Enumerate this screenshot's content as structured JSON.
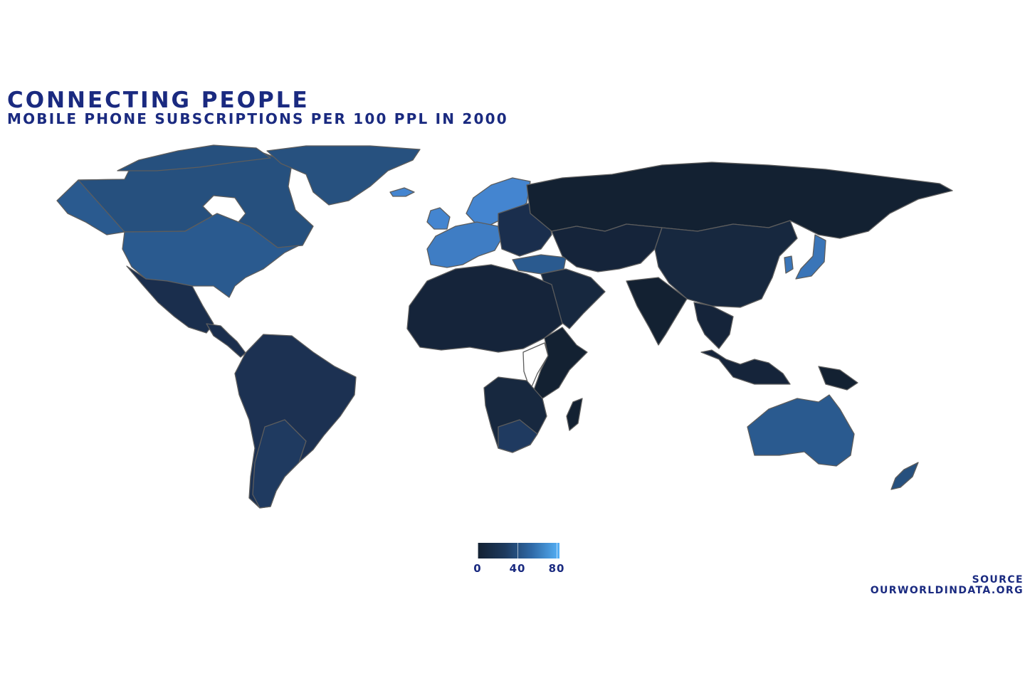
{
  "title": "CONNECTING PEOPLE",
  "subtitle": "MOBILE PHONE SUBSCRIPTIONS PER 100 PPL IN 2000",
  "chart_data": {
    "type": "choropleth",
    "metric": "Mobile phone subscriptions per 100 people",
    "year": 2000,
    "color_scale": {
      "low": "#132132",
      "high": "#56b1f7",
      "domain": [
        0,
        85
      ]
    },
    "legend": {
      "position": "bottom-center",
      "ticks": [
        0,
        40,
        80
      ]
    },
    "approx_values": {
      "Russia": 2,
      "China": 7,
      "India": 0.3,
      "Canada": 28,
      "United States": 38,
      "Greenland": 30,
      "Iceland": 76,
      "Norway": 72,
      "Sweden": 71,
      "Finland": 72,
      "United Kingdom": 73,
      "France": 49,
      "Spain": 60,
      "Italy": 74,
      "Germany": 58,
      "Turkey": 25,
      "Australia": 44,
      "New Zealand": 40,
      "Japan": 53,
      "South Korea": 57,
      "Brazil": 13,
      "Argentina": 18,
      "Chile": 22,
      "Mexico": 14,
      "Venezuela": 22,
      "South Africa": 19,
      "Saudi Arabia": 7,
      "Nigeria": 0.02,
      "Malaysia": 22
    },
    "no_data_regions": [
      "Caribbean",
      "Central Africa"
    ]
  },
  "legend_labels": [
    "0",
    "40",
    "80"
  ],
  "source": {
    "label": "SOURCE",
    "site": "OURWORLDINDATA.ORG"
  }
}
